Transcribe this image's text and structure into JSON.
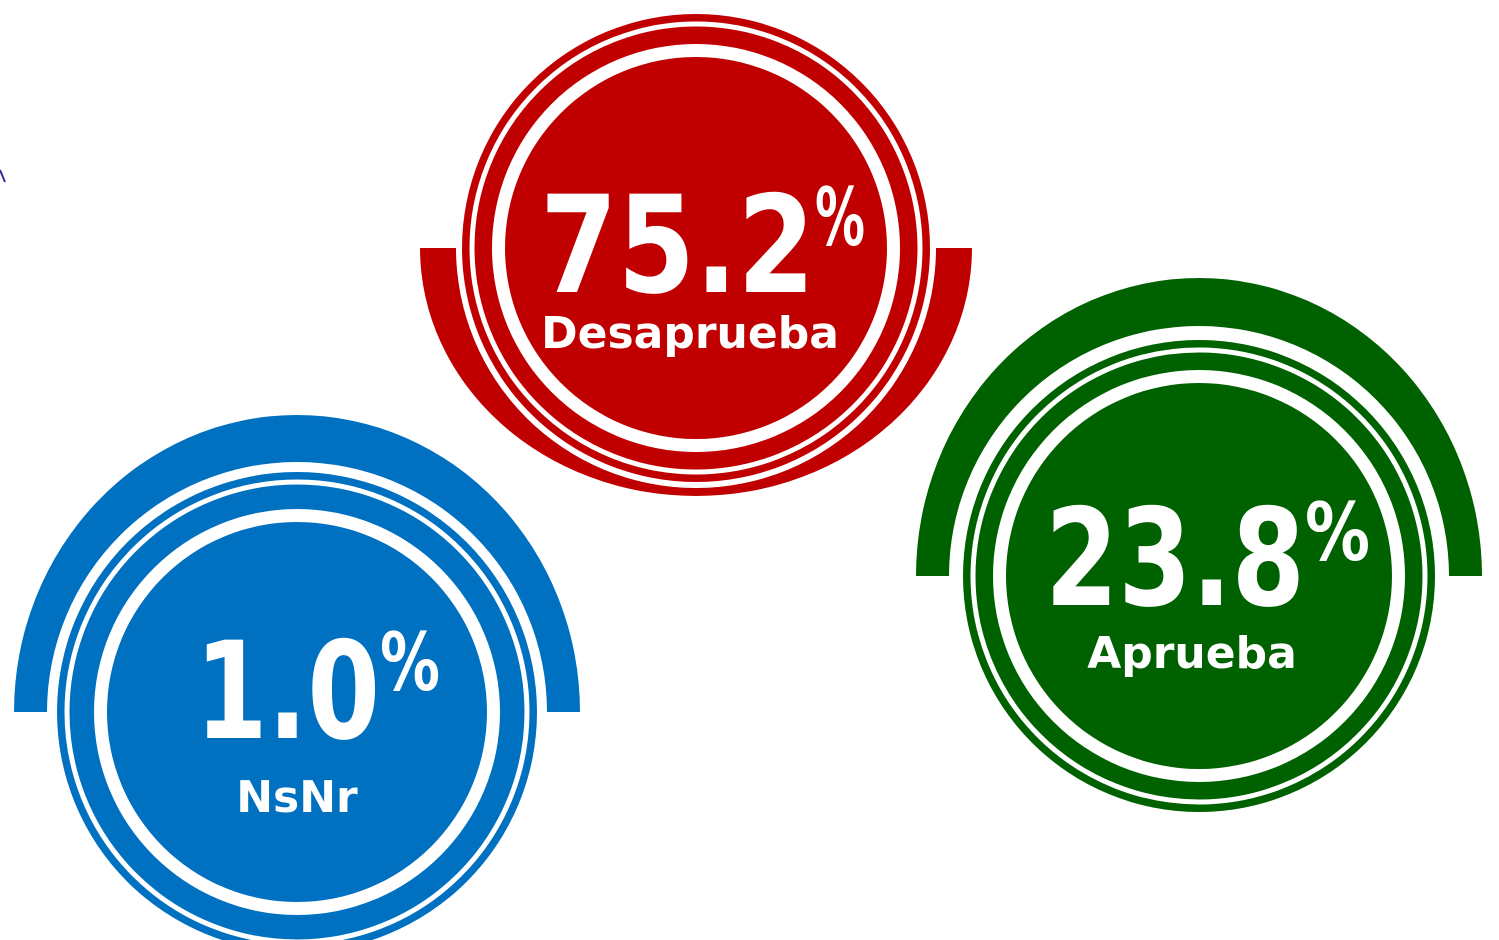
{
  "items": [
    {
      "value": "75.2",
      "unit": "%",
      "label": "Desaprueba",
      "color": "#c00000"
    },
    {
      "value": "23.8",
      "unit": "%",
      "label": "Aprueba",
      "color": "#006100"
    },
    {
      "value": "1.0",
      "unit": "%",
      "label": "NsNr",
      "color": "#0070c0"
    }
  ]
}
